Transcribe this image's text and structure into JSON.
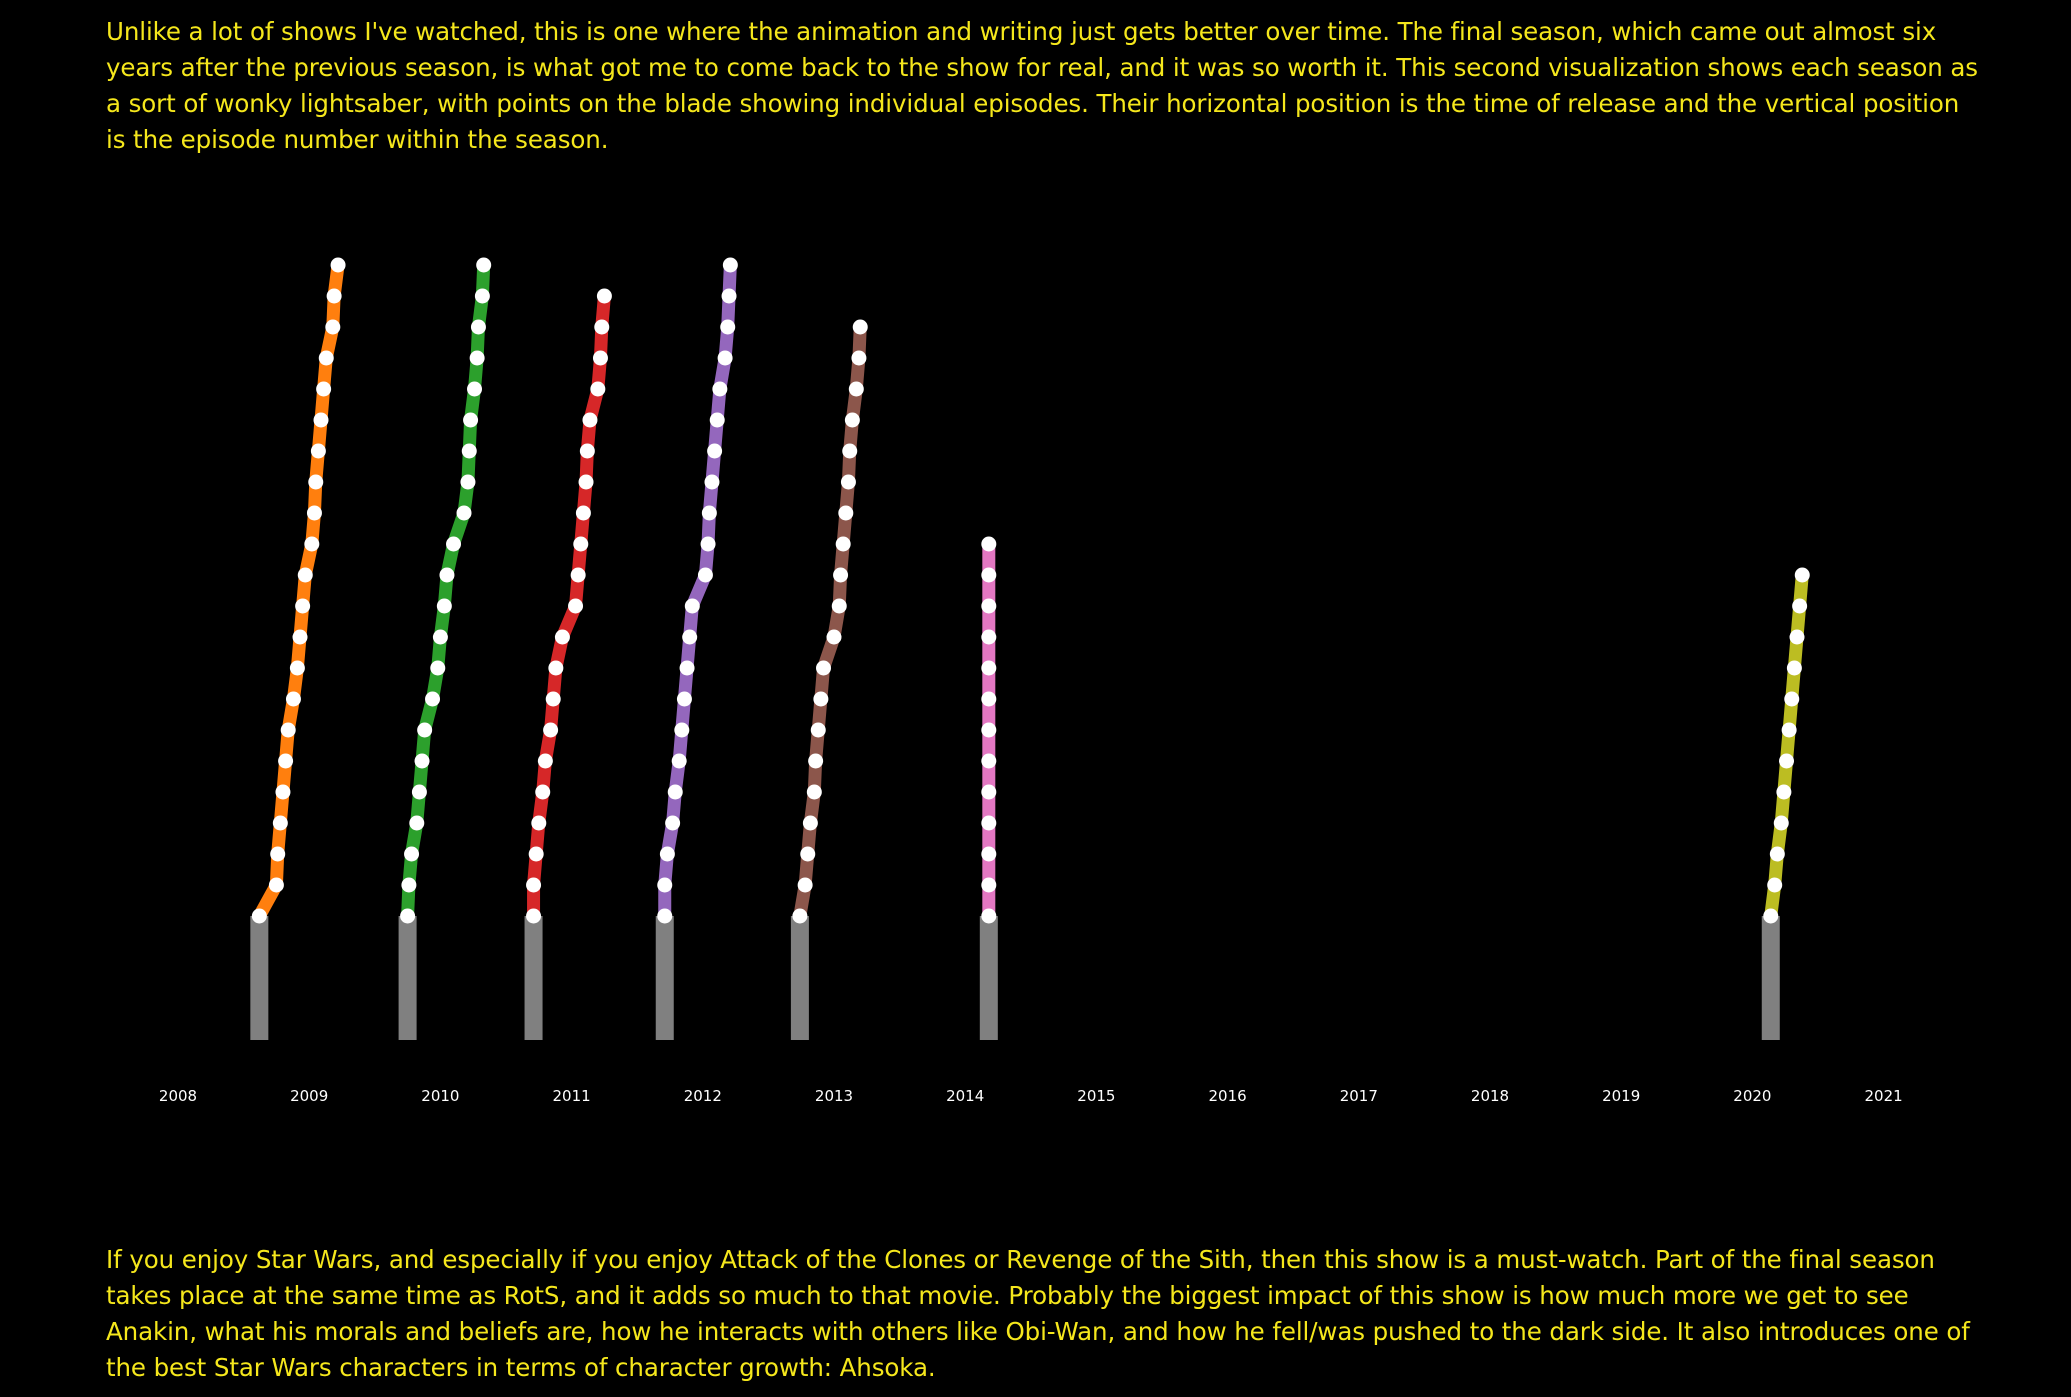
{
  "intro_text": "Unlike a lot of shows I've watched, this is one where the animation and writing just gets better over time. The final season, which came out almost six years after the previous season, is what got me to come back to the show for real, and it was so worth it. This second visualization shows each season as a sort of wonky lightsaber, with points on the blade showing individual episodes. Their horizontal position is the time of release and the vertical position is the episode number within the season.",
  "outro_text": "If you enjoy Star Wars, and especially if you enjoy Attack of the Clones or Revenge of the Sith, then this show is a must-watch. Part of the final season takes place at the same time as RotS, and it adds so much to that movie. Probably the biggest impact of this show is how much more we get to see Anakin, what his morals and beliefs are, how he interacts with others like Obi-Wan, and how he fell/was pushed to the dark side. It also introduces one of the best Star Wars characters in terms of character growth: Ahsoka.",
  "chart_data": {
    "type": "line",
    "x_axis": {
      "type": "time",
      "ticks": [
        "2008",
        "2009",
        "2010",
        "2011",
        "2012",
        "2013",
        "2014",
        "2015",
        "2016",
        "2017",
        "2018",
        "2019",
        "2020",
        "2021"
      ],
      "range": [
        2008,
        2021.3
      ]
    },
    "y_axis": {
      "label": "",
      "range": [
        0,
        22
      ]
    },
    "grid": false,
    "legend": "none",
    "series": [
      {
        "color": "#ff7f0e",
        "hilt_color": "#808080",
        "release_dates": [
          2008.62,
          2008.75,
          2008.76,
          2008.78,
          2008.8,
          2008.82,
          2008.84,
          2008.88,
          2008.91,
          2008.93,
          2008.95,
          2008.97,
          2009.02,
          2009.04,
          2009.05,
          2009.07,
          2009.09,
          2009.11,
          2009.13,
          2009.18,
          2009.19,
          2009.22
        ]
      },
      {
        "color": "#2ca02c",
        "hilt_color": "#808080",
        "release_dates": [
          2009.75,
          2009.76,
          2009.78,
          2009.82,
          2009.84,
          2009.86,
          2009.88,
          2009.94,
          2009.98,
          2010.0,
          2010.03,
          2010.05,
          2010.1,
          2010.18,
          2010.21,
          2010.22,
          2010.23,
          2010.26,
          2010.28,
          2010.29,
          2010.32,
          2010.33
        ]
      },
      {
        "color": "#d62728",
        "hilt_color": "#808080",
        "release_dates": [
          2010.71,
          2010.71,
          2010.73,
          2010.75,
          2010.78,
          2010.8,
          2010.84,
          2010.86,
          2010.88,
          2010.93,
          2011.03,
          2011.05,
          2011.07,
          2011.09,
          2011.11,
          2011.12,
          2011.14,
          2011.2,
          2011.22,
          2011.23,
          2011.25
        ]
      },
      {
        "color": "#9467bd",
        "hilt_color": "#808080",
        "release_dates": [
          2011.71,
          2011.71,
          2011.73,
          2011.77,
          2011.79,
          2011.82,
          2011.84,
          2011.86,
          2011.88,
          2011.9,
          2011.92,
          2012.02,
          2012.04,
          2012.05,
          2012.07,
          2012.09,
          2012.11,
          2012.13,
          2012.17,
          2012.19,
          2012.2,
          2012.21
        ]
      },
      {
        "color": "#8c564b",
        "hilt_color": "#808080",
        "release_dates": [
          2012.74,
          2012.78,
          2012.8,
          2012.82,
          2012.85,
          2012.86,
          2012.88,
          2012.9,
          2012.92,
          2013.0,
          2013.04,
          2013.05,
          2013.07,
          2013.09,
          2013.11,
          2013.12,
          2013.14,
          2013.17,
          2013.19,
          2013.2
        ]
      },
      {
        "color": "#e377c2",
        "hilt_color": "#808080",
        "release_dates": [
          2014.18,
          2014.18,
          2014.18,
          2014.18,
          2014.18,
          2014.18,
          2014.18,
          2014.18,
          2014.18,
          2014.18,
          2014.18,
          2014.18,
          2014.18
        ]
      },
      {
        "color": "#bcbd22",
        "hilt_color": "#808080",
        "release_dates": [
          2020.14,
          2020.17,
          2020.19,
          2020.22,
          2020.24,
          2020.26,
          2020.28,
          2020.3,
          2020.32,
          2020.34,
          2020.36,
          2020.38
        ]
      }
    ]
  }
}
